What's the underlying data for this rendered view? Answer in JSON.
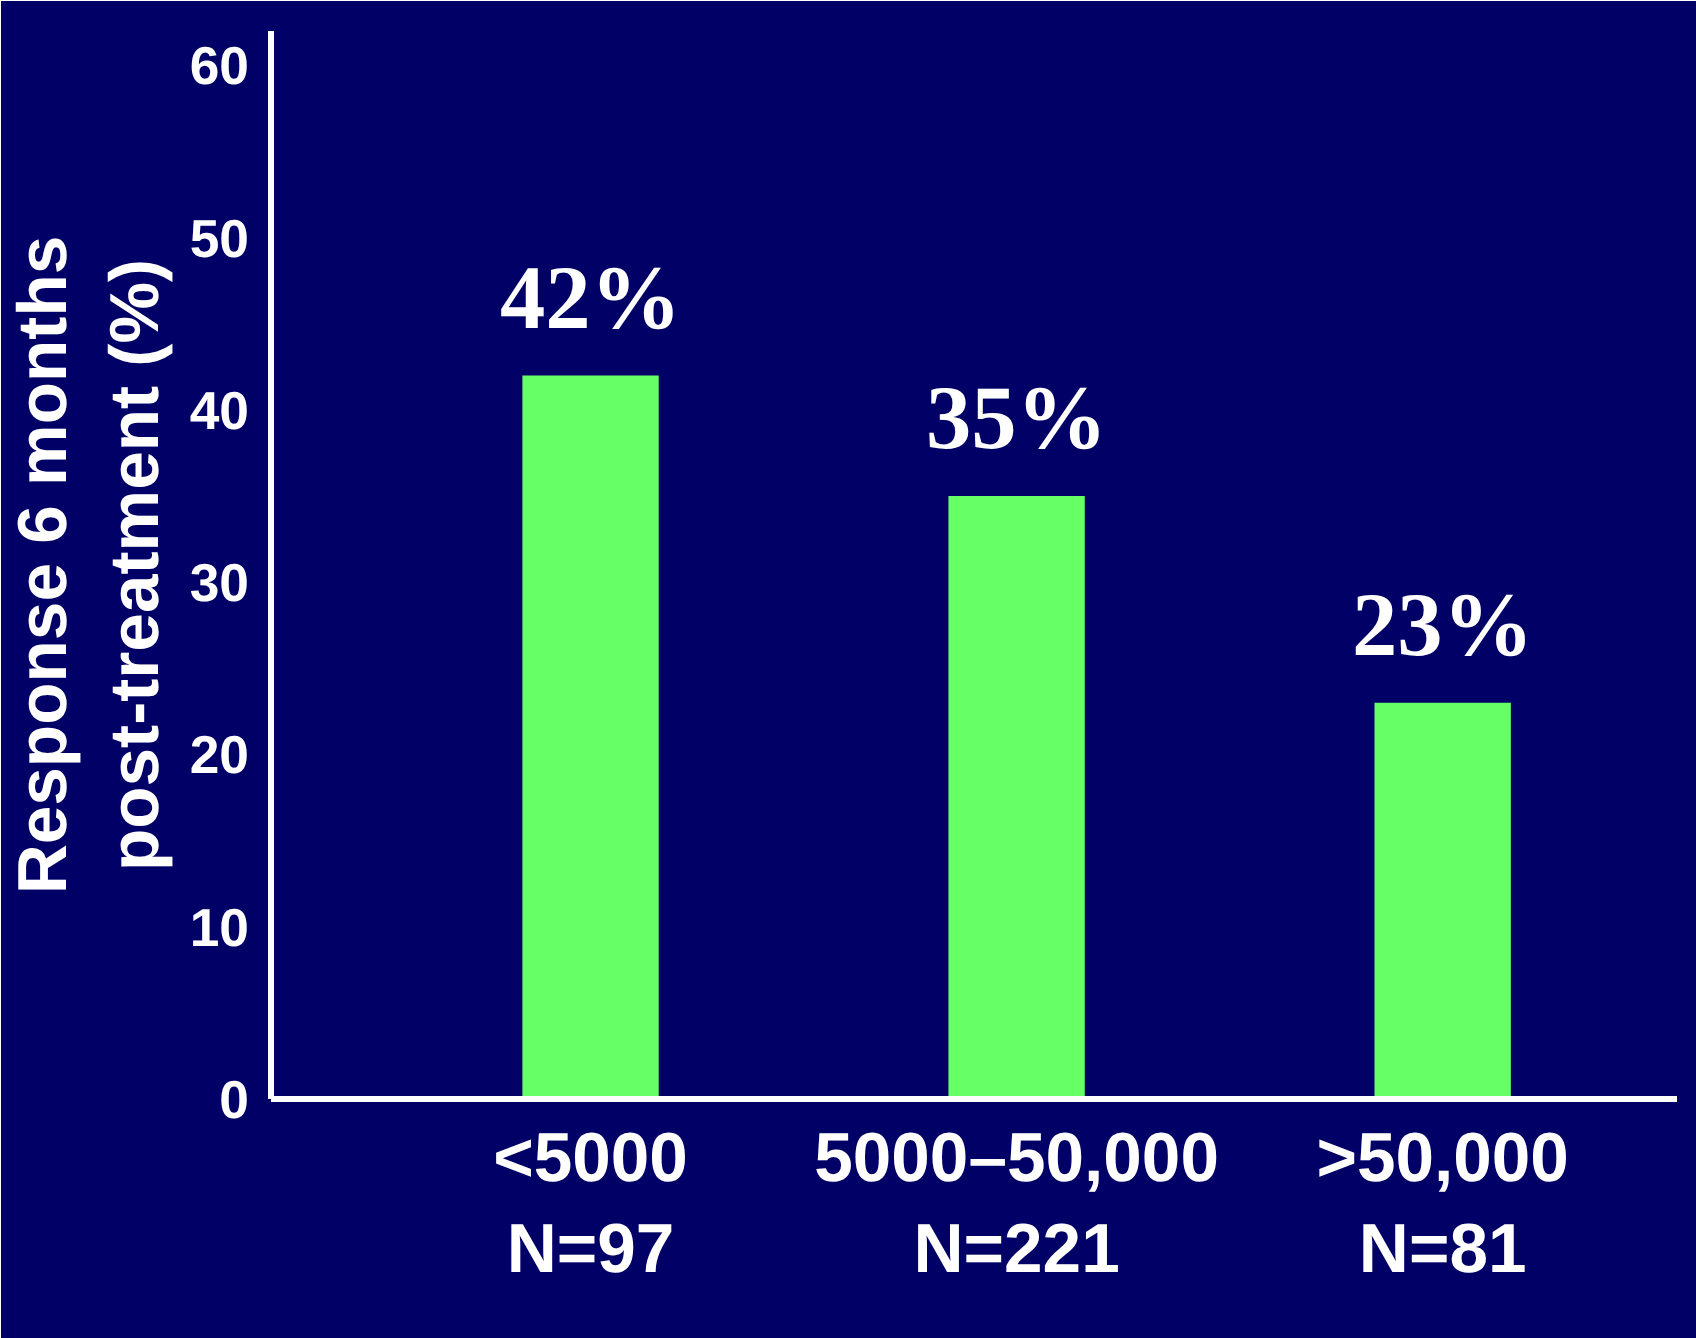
{
  "chart_data": {
    "type": "bar",
    "ylabel": "Response 6 months\npost-treatment (%)",
    "categories": [
      "<5000\nN=97",
      "5000–50,000\nN=221",
      ">50,000\nN=81"
    ],
    "values": [
      42,
      35,
      23
    ],
    "value_labels": [
      "42%",
      "35%",
      "23%"
    ],
    "color": "#66ff66",
    "ylim": [
      0,
      62
    ],
    "yticks": [
      0,
      10,
      20,
      30,
      40,
      50,
      60
    ],
    "grid": false
  }
}
